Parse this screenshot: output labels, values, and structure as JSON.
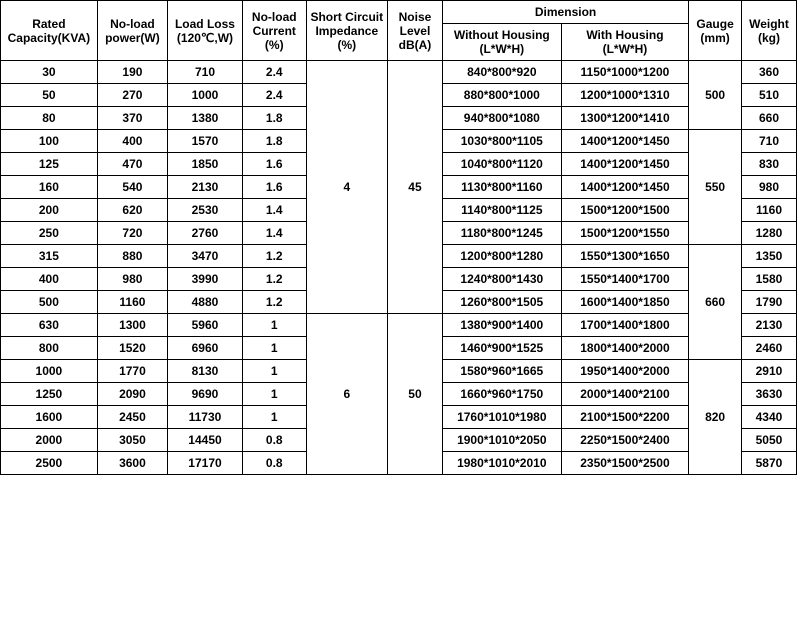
{
  "headers": {
    "rated_capacity": "Rated Capacity(KVA)",
    "noload_power": "No-load power(W)",
    "load_loss": "Load Loss (120℃,W)",
    "noload_current": "No-load Current (%)",
    "short_circuit": "Short Circuit Impedance (%)",
    "noise_level": "Noise Level dB(A)",
    "dimension": "Dimension",
    "dim_without": "Without Housing (L*W*H)",
    "dim_with": "With Housing (L*W*H)",
    "gauge": "Gauge (mm)",
    "weight": "Weight (kg)"
  },
  "rows": [
    {
      "capacity": "30",
      "noload_power": "190",
      "load_loss": "710",
      "noload_current": "2.4",
      "dim_without": "840*800*920",
      "dim_with": "1150*1000*1200",
      "weight": "360"
    },
    {
      "capacity": "50",
      "noload_power": "270",
      "load_loss": "1000",
      "noload_current": "2.4",
      "dim_without": "880*800*1000",
      "dim_with": "1200*1000*1310",
      "weight": "510"
    },
    {
      "capacity": "80",
      "noload_power": "370",
      "load_loss": "1380",
      "noload_current": "1.8",
      "dim_without": "940*800*1080",
      "dim_with": "1300*1200*1410",
      "weight": "660"
    },
    {
      "capacity": "100",
      "noload_power": "400",
      "load_loss": "1570",
      "noload_current": "1.8",
      "dim_without": "1030*800*1105",
      "dim_with": "1400*1200*1450",
      "weight": "710"
    },
    {
      "capacity": "125",
      "noload_power": "470",
      "load_loss": "1850",
      "noload_current": "1.6",
      "dim_without": "1040*800*1120",
      "dim_with": "1400*1200*1450",
      "weight": "830"
    },
    {
      "capacity": "160",
      "noload_power": "540",
      "load_loss": "2130",
      "noload_current": "1.6",
      "dim_without": "1130*800*1160",
      "dim_with": "1400*1200*1450",
      "weight": "980"
    },
    {
      "capacity": "200",
      "noload_power": "620",
      "load_loss": "2530",
      "noload_current": "1.4",
      "dim_without": "1140*800*1125",
      "dim_with": "1500*1200*1500",
      "weight": "1160"
    },
    {
      "capacity": "250",
      "noload_power": "720",
      "load_loss": "2760",
      "noload_current": "1.4",
      "dim_without": "1180*800*1245",
      "dim_with": "1500*1200*1550",
      "weight": "1280"
    },
    {
      "capacity": "315",
      "noload_power": "880",
      "load_loss": "3470",
      "noload_current": "1.2",
      "dim_without": "1200*800*1280",
      "dim_with": "1550*1300*1650",
      "weight": "1350"
    },
    {
      "capacity": "400",
      "noload_power": "980",
      "load_loss": "3990",
      "noload_current": "1.2",
      "dim_without": "1240*800*1430",
      "dim_with": "1550*1400*1700",
      "weight": "1580"
    },
    {
      "capacity": "500",
      "noload_power": "1160",
      "load_loss": "4880",
      "noload_current": "1.2",
      "dim_without": "1260*800*1505",
      "dim_with": "1600*1400*1850",
      "weight": "1790"
    },
    {
      "capacity": "630",
      "noload_power": "1300",
      "load_loss": "5960",
      "noload_current": "1",
      "dim_without": "1380*900*1400",
      "dim_with": "1700*1400*1800",
      "weight": "2130"
    },
    {
      "capacity": "800",
      "noload_power": "1520",
      "load_loss": "6960",
      "noload_current": "1",
      "dim_without": "1460*900*1525",
      "dim_with": "1800*1400*2000",
      "weight": "2460"
    },
    {
      "capacity": "1000",
      "noload_power": "1770",
      "load_loss": "8130",
      "noload_current": "1",
      "dim_without": "1580*960*1665",
      "dim_with": "1950*1400*2000",
      "weight": "2910"
    },
    {
      "capacity": "1250",
      "noload_power": "2090",
      "load_loss": "9690",
      "noload_current": "1",
      "dim_without": "1660*960*1750",
      "dim_with": "2000*1400*2100",
      "weight": "3630"
    },
    {
      "capacity": "1600",
      "noload_power": "2450",
      "load_loss": "11730",
      "noload_current": "1",
      "dim_without": "1760*1010*1980",
      "dim_with": "2100*1500*2200",
      "weight": "4340"
    },
    {
      "capacity": "2000",
      "noload_power": "3050",
      "load_loss": "14450",
      "noload_current": "0.8",
      "dim_without": "1900*1010*2050",
      "dim_with": "2250*1500*2400",
      "weight": "5050"
    },
    {
      "capacity": "2500",
      "noload_power": "3600",
      "load_loss": "17170",
      "noload_current": "0.8",
      "dim_without": "1980*1010*2010",
      "dim_with": "2350*1500*2500",
      "weight": "5870"
    }
  ],
  "short_circuit_groups": [
    {
      "value": "4",
      "rowspan": 11
    },
    {
      "value": "6",
      "rowspan": 7
    }
  ],
  "noise_groups": [
    {
      "value": "45",
      "rowspan": 11
    },
    {
      "value": "50",
      "rowspan": 7
    }
  ],
  "gauge_groups": [
    {
      "value": "500",
      "rowspan": 3
    },
    {
      "value": "550",
      "rowspan": 5
    },
    {
      "value": "660",
      "rowspan": 5
    },
    {
      "value": "820",
      "rowspan": 5
    }
  ]
}
